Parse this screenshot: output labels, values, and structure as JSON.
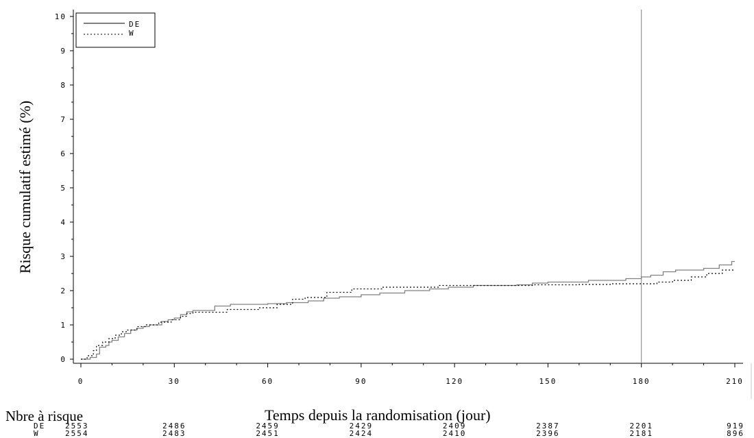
{
  "chart_data": {
    "type": "line",
    "step": true,
    "xlabel": "Temps depuis la randomisation (jour)",
    "ylabel": "Risque cumulatif estimé (%)",
    "xlim": [
      0,
      210
    ],
    "ylim": [
      0,
      10
    ],
    "xticks": [
      "0",
      "30",
      "60",
      "90",
      "120",
      "150",
      "180",
      "210"
    ],
    "yticks": [
      "0",
      "1",
      "2",
      "3",
      "4",
      "5",
      "6",
      "7",
      "8",
      "9",
      "10"
    ],
    "legend_position": "top-left",
    "reference_line_x": 180,
    "series": [
      {
        "name": "DE",
        "style": "solid",
        "color": "#808080",
        "points": [
          [
            0,
            0
          ],
          [
            3,
            0.05
          ],
          [
            5,
            0.15
          ],
          [
            6,
            0.35
          ],
          [
            8,
            0.4
          ],
          [
            9,
            0.5
          ],
          [
            10,
            0.55
          ],
          [
            12,
            0.65
          ],
          [
            14,
            0.75
          ],
          [
            16,
            0.85
          ],
          [
            18,
            0.9
          ],
          [
            20,
            0.95
          ],
          [
            22,
            1.0
          ],
          [
            26,
            1.1
          ],
          [
            28,
            1.15
          ],
          [
            30,
            1.2
          ],
          [
            32,
            1.3
          ],
          [
            34,
            1.38
          ],
          [
            36,
            1.42
          ],
          [
            43,
            1.55
          ],
          [
            48,
            1.6
          ],
          [
            60,
            1.62
          ],
          [
            66,
            1.65
          ],
          [
            73,
            1.7
          ],
          [
            78,
            1.78
          ],
          [
            83,
            1.82
          ],
          [
            90,
            1.88
          ],
          [
            96,
            1.93
          ],
          [
            104,
            2.0
          ],
          [
            112,
            2.05
          ],
          [
            118,
            2.1
          ],
          [
            126,
            2.15
          ],
          [
            140,
            2.17
          ],
          [
            145,
            2.22
          ],
          [
            150,
            2.25
          ],
          [
            163,
            2.3
          ],
          [
            175,
            2.35
          ],
          [
            180,
            2.4
          ],
          [
            183,
            2.45
          ],
          [
            187,
            2.55
          ],
          [
            191,
            2.6
          ],
          [
            200,
            2.65
          ],
          [
            205,
            2.75
          ],
          [
            209,
            2.85
          ],
          [
            210,
            2.85
          ]
        ]
      },
      {
        "name": "W",
        "style": "dotted",
        "color": "#000000",
        "points": [
          [
            0,
            0
          ],
          [
            2,
            0.1
          ],
          [
            4,
            0.25
          ],
          [
            5,
            0.4
          ],
          [
            7,
            0.5
          ],
          [
            9,
            0.6
          ],
          [
            11,
            0.7
          ],
          [
            13,
            0.8
          ],
          [
            15,
            0.85
          ],
          [
            18,
            0.95
          ],
          [
            21,
            1.0
          ],
          [
            25,
            1.08
          ],
          [
            29,
            1.15
          ],
          [
            32,
            1.25
          ],
          [
            34,
            1.33
          ],
          [
            36,
            1.37
          ],
          [
            47,
            1.45
          ],
          [
            57,
            1.5
          ],
          [
            63,
            1.6
          ],
          [
            68,
            1.75
          ],
          [
            72,
            1.8
          ],
          [
            79,
            1.95
          ],
          [
            87,
            2.05
          ],
          [
            97,
            2.1
          ],
          [
            115,
            2.15
          ],
          [
            140,
            2.15
          ],
          [
            145,
            2.17
          ],
          [
            160,
            2.18
          ],
          [
            170,
            2.2
          ],
          [
            180,
            2.2
          ],
          [
            185,
            2.25
          ],
          [
            190,
            2.3
          ],
          [
            196,
            2.4
          ],
          [
            201,
            2.5
          ],
          [
            206,
            2.6
          ],
          [
            210,
            2.6
          ]
        ]
      }
    ],
    "risk_table": {
      "title": "Nbre à risque",
      "x": [
        0,
        30,
        60,
        90,
        120,
        150,
        180,
        210
      ],
      "rows": [
        {
          "name": "DE",
          "values": [
            "2553",
            "2486",
            "2459",
            "2429",
            "2409",
            "2387",
            "2201",
            "919"
          ]
        },
        {
          "name": "W",
          "values": [
            "2554",
            "2483",
            "2451",
            "2424",
            "2410",
            "2396",
            "2181",
            "896"
          ]
        }
      ]
    }
  }
}
